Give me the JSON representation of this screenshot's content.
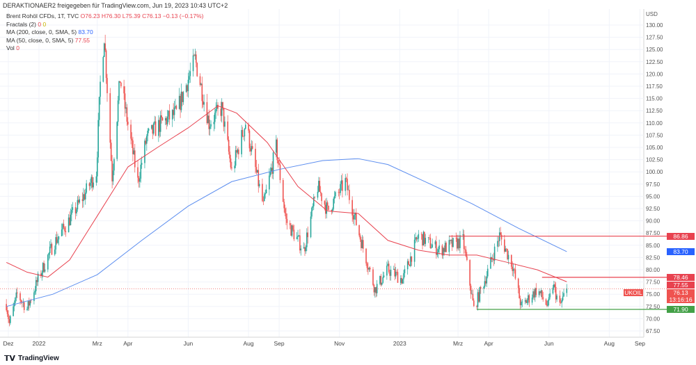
{
  "header": {
    "text": "DERAKTIONAER2 freigegeben für TradingView.com, Jun 19, 2023 10:43 UTC+2"
  },
  "legend": {
    "symbol": "Brent Rohöl CFDs, 1T, TVC",
    "o": "O76.23",
    "h": "H76.30",
    "l": "L75.39",
    "c": "C76.13",
    "chg": "−0.13 (−0.17%)",
    "fractals": "Fractals (2)",
    "fr1": "0",
    "fr2": "0",
    "ma200": "MA (200, close, 0, SMA, 5)",
    "ma200_val": "83.70",
    "ma50": "MA (50, close, 0, SMA, 5)",
    "ma50_val": "77.55",
    "vol": "Vol",
    "vol_val": "0"
  },
  "footer": {
    "brand": "TradingView"
  },
  "colors": {
    "up": "#26a69a",
    "down": "#ef5350",
    "ma200": "#5b8def",
    "ma50": "#e8424f",
    "support": "#43a047"
  },
  "chart_data": {
    "type": "candlestick",
    "currency": "USD",
    "ylim": [
      66,
      133
    ],
    "yticks": [
      "67.50",
      "70.00",
      "72.50",
      "75.00",
      "77.50",
      "80.00",
      "82.50",
      "85.00",
      "87.50",
      "90.00",
      "92.50",
      "95.00",
      "97.50",
      "100.00",
      "102.50",
      "105.00",
      "107.50",
      "110.00",
      "112.50",
      "115.00",
      "117.50",
      "120.00",
      "122.50",
      "125.00",
      "127.50",
      "130.00"
    ],
    "xticks": [
      [
        "Dez",
        "2021-12-01"
      ],
      [
        "2022",
        "2022-01-01"
      ],
      [
        "Mrz",
        "2022-03-01"
      ],
      [
        "Apr",
        "2022-04-01"
      ],
      [
        "Jun",
        "2022-06-01"
      ],
      [
        "Aug",
        "2022-08-01"
      ],
      [
        "Sep",
        "2022-09-01"
      ],
      [
        "Nov",
        "2022-11-01"
      ],
      [
        "2023",
        "2023-01-01"
      ],
      [
        "Mrz",
        "2023-03-01"
      ],
      [
        "Apr",
        "2023-04-01"
      ],
      [
        "Jun",
        "2023-06-01"
      ],
      [
        "Aug",
        "2023-08-01"
      ],
      [
        "Sep",
        "2023-09-01"
      ]
    ],
    "close_path": [
      [
        "2021-11-29",
        73
      ],
      [
        "2021-12-02",
        69
      ],
      [
        "2021-12-10",
        75
      ],
      [
        "2021-12-20",
        72
      ],
      [
        "2021-12-31",
        78
      ],
      [
        "2022-01-15",
        85
      ],
      [
        "2022-01-31",
        90
      ],
      [
        "2022-02-15",
        95
      ],
      [
        "2022-02-28",
        100
      ],
      [
        "2022-03-04",
        118
      ],
      [
        "2022-03-08",
        128
      ],
      [
        "2022-03-16",
        99
      ],
      [
        "2022-03-24",
        119
      ],
      [
        "2022-04-11",
        98
      ],
      [
        "2022-04-20",
        107
      ],
      [
        "2022-05-05",
        110
      ],
      [
        "2022-05-20",
        112
      ],
      [
        "2022-06-08",
        123
      ],
      [
        "2022-06-22",
        110
      ],
      [
        "2022-07-05",
        113
      ],
      [
        "2022-07-15",
        100
      ],
      [
        "2022-07-29",
        110
      ],
      [
        "2022-08-16",
        93
      ],
      [
        "2022-08-29",
        105
      ],
      [
        "2022-09-08",
        90
      ],
      [
        "2022-09-26",
        84
      ],
      [
        "2022-10-10",
        97
      ],
      [
        "2022-10-20",
        92
      ],
      [
        "2022-11-07",
        98
      ],
      [
        "2022-11-20",
        88
      ],
      [
        "2022-12-07",
        76
      ],
      [
        "2022-12-20",
        80
      ],
      [
        "2023-01-04",
        78
      ],
      [
        "2023-01-20",
        87
      ],
      [
        "2023-02-10",
        84
      ],
      [
        "2023-03-06",
        86
      ],
      [
        "2023-03-17",
        72
      ],
      [
        "2023-03-30",
        79
      ],
      [
        "2023-04-12",
        87
      ],
      [
        "2023-04-25",
        81
      ],
      [
        "2023-05-04",
        72.5
      ],
      [
        "2023-05-20",
        76
      ],
      [
        "2023-05-31",
        72.5
      ],
      [
        "2023-06-05",
        77
      ],
      [
        "2023-06-12",
        72.5
      ],
      [
        "2023-06-19",
        76.13
      ]
    ],
    "ma200": [
      [
        "2021-11-29",
        72.5
      ],
      [
        "2022-01-15",
        75
      ],
      [
        "2022-03-01",
        79
      ],
      [
        "2022-04-15",
        86
      ],
      [
        "2022-06-01",
        93
      ],
      [
        "2022-07-15",
        98
      ],
      [
        "2022-09-01",
        100.5
      ],
      [
        "2022-10-15",
        102.3
      ],
      [
        "2022-11-20",
        102.7
      ],
      [
        "2022-12-20",
        101.5
      ],
      [
        "2023-02-01",
        97.5
      ],
      [
        "2023-03-15",
        93.5
      ],
      [
        "2023-05-01",
        88.5
      ],
      [
        "2023-06-19",
        83.7
      ]
    ],
    "ma50": [
      [
        "2021-11-29",
        81.5
      ],
      [
        "2021-12-20",
        79.5
      ],
      [
        "2022-01-10",
        78.5
      ],
      [
        "2022-02-01",
        82
      ],
      [
        "2022-03-01",
        91
      ],
      [
        "2022-04-01",
        101
      ],
      [
        "2022-05-01",
        105
      ],
      [
        "2022-06-01",
        109
      ],
      [
        "2022-07-01",
        113.5
      ],
      [
        "2022-07-20",
        112
      ],
      [
        "2022-08-20",
        106
      ],
      [
        "2022-09-20",
        97
      ],
      [
        "2022-10-20",
        92
      ],
      [
        "2022-11-20",
        91.5
      ],
      [
        "2022-12-20",
        86
      ],
      [
        "2023-01-20",
        84
      ],
      [
        "2023-02-20",
        83
      ],
      [
        "2023-03-20",
        83
      ],
      [
        "2023-04-20",
        81.5
      ],
      [
        "2023-05-20",
        80
      ],
      [
        "2023-06-19",
        77.55
      ]
    ],
    "levels": [
      {
        "value": 86.86,
        "label": "86.86",
        "color": "#e8424f",
        "from": "2023-02-20"
      },
      {
        "value": 78.46,
        "label": "78.46",
        "color": "#e8424f",
        "from": "2023-05-25"
      },
      {
        "value": 71.9,
        "label": "71.90",
        "color": "#43a047",
        "from": "2023-03-20"
      }
    ],
    "price_tags": [
      {
        "value": 83.7,
        "label": "83.70",
        "color": "#2962ff"
      },
      {
        "value": 77.55,
        "label": "77.55",
        "color": "#e8424f"
      }
    ],
    "last": {
      "symbol": "UKOIL",
      "price": "76.13",
      "countdown": "13:16:16",
      "value": 76.13
    }
  }
}
